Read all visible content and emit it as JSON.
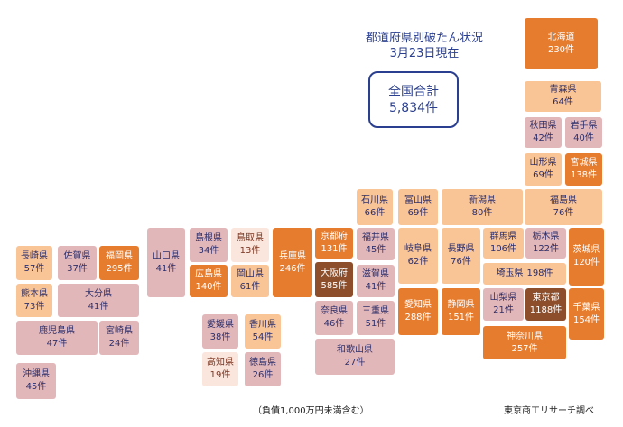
{
  "title": {
    "line1": "都道府県別破たん状況",
    "line2": "3月23日現在"
  },
  "total": {
    "label": "全国合計",
    "value": "5,834件"
  },
  "legend_colors": {
    "level1": "#fbe6de",
    "level2": "#e2b7ba",
    "level3": "#f9c496",
    "level4": "#e67c2e",
    "level5": "#8d4f2b"
  },
  "prefectures": {
    "hokkaido": {
      "name": "北海道",
      "count": "230件"
    },
    "aomori": {
      "name": "青森県",
      "count": "64件"
    },
    "akita": {
      "name": "秋田県",
      "count": "42件"
    },
    "iwate": {
      "name": "岩手県",
      "count": "40件"
    },
    "yamagata": {
      "name": "山形県",
      "count": "69件"
    },
    "miyagi": {
      "name": "宮城県",
      "count": "138件"
    },
    "fukushima": {
      "name": "福島県",
      "count": "76件"
    },
    "niigata": {
      "name": "新潟県",
      "count": "80件"
    },
    "ishikawa": {
      "name": "石川県",
      "count": "66件"
    },
    "toyama": {
      "name": "富山県",
      "count": "69件"
    },
    "gunma": {
      "name": "群馬県",
      "count": "106件"
    },
    "tochigi": {
      "name": "栃木県",
      "count": "122件"
    },
    "ibaraki": {
      "name": "茨城県",
      "count": "120件"
    },
    "saitama": {
      "name": "埼玉県",
      "count": "198件"
    },
    "yamanashi": {
      "name": "山梨県",
      "count": "21件"
    },
    "tokyo": {
      "name": "東京都",
      "count": "1188件"
    },
    "chiba": {
      "name": "千葉県",
      "count": "154件"
    },
    "kanagawa": {
      "name": "神奈川県",
      "count": "257件"
    },
    "nagano": {
      "name": "長野県",
      "count": "76件"
    },
    "gifu": {
      "name": "岐阜県",
      "count": "62件"
    },
    "fukui": {
      "name": "福井県",
      "count": "45件"
    },
    "shiga": {
      "name": "滋賀県",
      "count": "41件"
    },
    "aichi": {
      "name": "愛知県",
      "count": "288件"
    },
    "shizuoka": {
      "name": "静岡県",
      "count": "151件"
    },
    "mie": {
      "name": "三重県",
      "count": "51件"
    },
    "kyoto": {
      "name": "京都府",
      "count": "131件"
    },
    "osaka": {
      "name": "大阪府",
      "count": "585件"
    },
    "nara": {
      "name": "奈良県",
      "count": "46件"
    },
    "wakayama": {
      "name": "和歌山県",
      "count": "27件"
    },
    "hyogo": {
      "name": "兵庫県",
      "count": "246件"
    },
    "tottori": {
      "name": "鳥取県",
      "count": "13件"
    },
    "shimane": {
      "name": "島根県",
      "count": "34件"
    },
    "okayama": {
      "name": "岡山県",
      "count": "61件"
    },
    "hiroshima": {
      "name": "広島県",
      "count": "140件"
    },
    "yamaguchi": {
      "name": "山口県",
      "count": "41件"
    },
    "ehime": {
      "name": "愛媛県",
      "count": "38件"
    },
    "kagawa": {
      "name": "香川県",
      "count": "54件"
    },
    "kochi": {
      "name": "高知県",
      "count": "19件"
    },
    "tokushima": {
      "name": "徳島県",
      "count": "26件"
    },
    "nagasaki": {
      "name": "長崎県",
      "count": "57件"
    },
    "saga": {
      "name": "佐賀県",
      "count": "37件"
    },
    "fukuoka": {
      "name": "福岡県",
      "count": "295件"
    },
    "kumamoto": {
      "name": "熊本県",
      "count": "73件"
    },
    "oita": {
      "name": "大分県",
      "count": "41件"
    },
    "kagoshima": {
      "name": "鹿児島県",
      "count": "47件"
    },
    "miyazaki": {
      "name": "宮崎県",
      "count": "24件"
    },
    "okinawa": {
      "name": "沖縄県",
      "count": "45件"
    }
  },
  "note": "（負債1,000万円未満含む）",
  "source": "東京商工リサーチ調べ"
}
